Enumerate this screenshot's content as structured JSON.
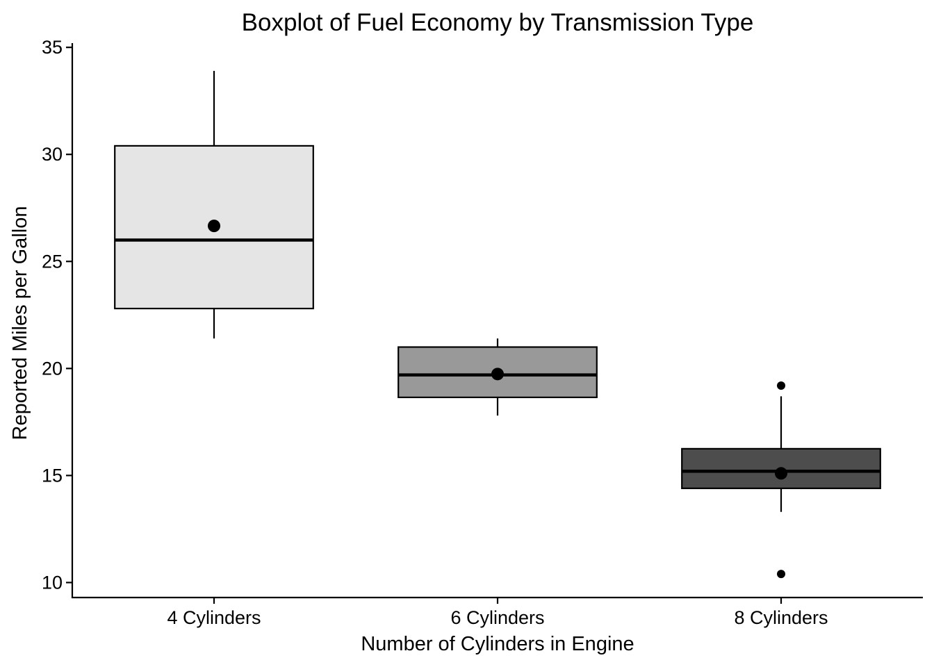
{
  "chart_data": {
    "type": "boxplot",
    "title": "Boxplot of Fuel Economy by Transmission Type",
    "xlabel": "Number of Cylinders in Engine",
    "ylabel": "Reported Miles per Gallon",
    "ylim": [
      9.3,
      35.2
    ],
    "yticks": [
      10,
      15,
      20,
      25,
      30,
      35
    ],
    "grid": false,
    "legend": "none",
    "categories": [
      "4 Cylinders",
      "6 Cylinders",
      "8 Cylinders"
    ],
    "boxes": [
      {
        "category": "4 Cylinders",
        "whisker_low": 21.4,
        "q1": 22.8,
        "median": 26.0,
        "q3": 30.4,
        "whisker_high": 33.9,
        "mean": 26.66,
        "outliers": [],
        "fill": "#e5e5e5"
      },
      {
        "category": "6 Cylinders",
        "whisker_low": 17.8,
        "q1": 18.65,
        "median": 19.7,
        "q3": 21.0,
        "whisker_high": 21.4,
        "mean": 19.74,
        "outliers": [],
        "fill": "#999999"
      },
      {
        "category": "8 Cylinders",
        "whisker_low": 13.3,
        "q1": 14.4,
        "median": 15.2,
        "q3": 16.25,
        "whisker_high": 18.7,
        "mean": 15.1,
        "outliers": [
          19.2,
          10.4
        ],
        "fill": "#4d4d4d"
      }
    ]
  }
}
